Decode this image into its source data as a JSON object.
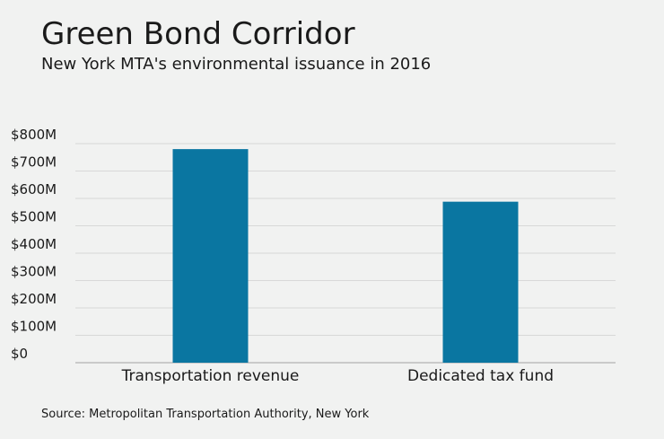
{
  "header": {
    "title": "Green Bond Corridor",
    "subtitle": "New York MTA's environmental issuance in 2016"
  },
  "footer": {
    "source": "Source: Metropolitan Transportation Authority, New York"
  },
  "colors": {
    "bar": "#0a76a1",
    "grid": "#d8d8d8",
    "axis": "#bdbdbd",
    "background": "#f1f2f1"
  },
  "chart_data": {
    "type": "bar",
    "title": "Green Bond Corridor",
    "subtitle": "New York MTA's environmental issuance in 2016",
    "categories": [
      "Transportation revenue",
      "Dedicated tax fund"
    ],
    "values": [
      780,
      588
    ],
    "unit": "$M",
    "ylim": [
      0,
      800
    ],
    "yticks": [
      0,
      100,
      200,
      300,
      400,
      500,
      600,
      700,
      800
    ],
    "ytick_labels": [
      "$0",
      "$100M",
      "$200M",
      "$300M",
      "$400M",
      "$500M",
      "$600M",
      "$700M",
      "$800M"
    ],
    "xlabel": "",
    "ylabel": "",
    "grid": true,
    "legend": "none"
  }
}
